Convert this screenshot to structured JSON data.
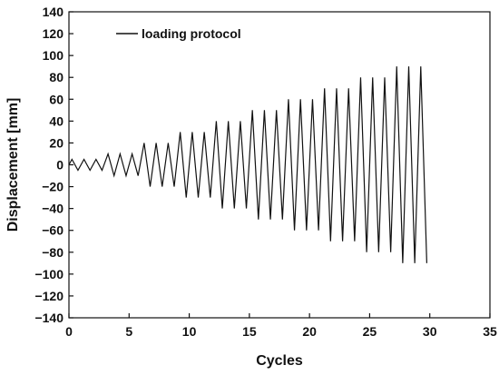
{
  "chart_data": {
    "type": "line",
    "title": "",
    "xlabel": "Cycles",
    "ylabel": "Displacement [mm]",
    "xlim": [
      0,
      35
    ],
    "ylim": [
      -140,
      140
    ],
    "x_ticks": [
      0,
      5,
      10,
      15,
      20,
      25,
      30,
      35
    ],
    "y_ticks": [
      -140,
      -120,
      -100,
      -80,
      -60,
      -40,
      -20,
      0,
      20,
      40,
      60,
      80,
      100,
      120,
      140
    ],
    "grid": false,
    "legend_position": "top-left",
    "colors": {
      "line": "#111111",
      "axis": "#111111"
    },
    "series": [
      {
        "name": "loading protocol",
        "amplitude_levels": [
          {
            "amplitude": 5,
            "cycles": 3
          },
          {
            "amplitude": 10,
            "cycles": 3
          },
          {
            "amplitude": 20,
            "cycles": 3
          },
          {
            "amplitude": 30,
            "cycles": 3
          },
          {
            "amplitude": 40,
            "cycles": 3
          },
          {
            "amplitude": 50,
            "cycles": 3
          },
          {
            "amplitude": 60,
            "cycles": 3
          },
          {
            "amplitude": 70,
            "cycles": 3
          },
          {
            "amplitude": 80,
            "cycles": 3
          },
          {
            "amplitude": 90,
            "cycles": 3
          }
        ],
        "start_cycle": 0,
        "end_cycle": 30.5
      }
    ]
  }
}
